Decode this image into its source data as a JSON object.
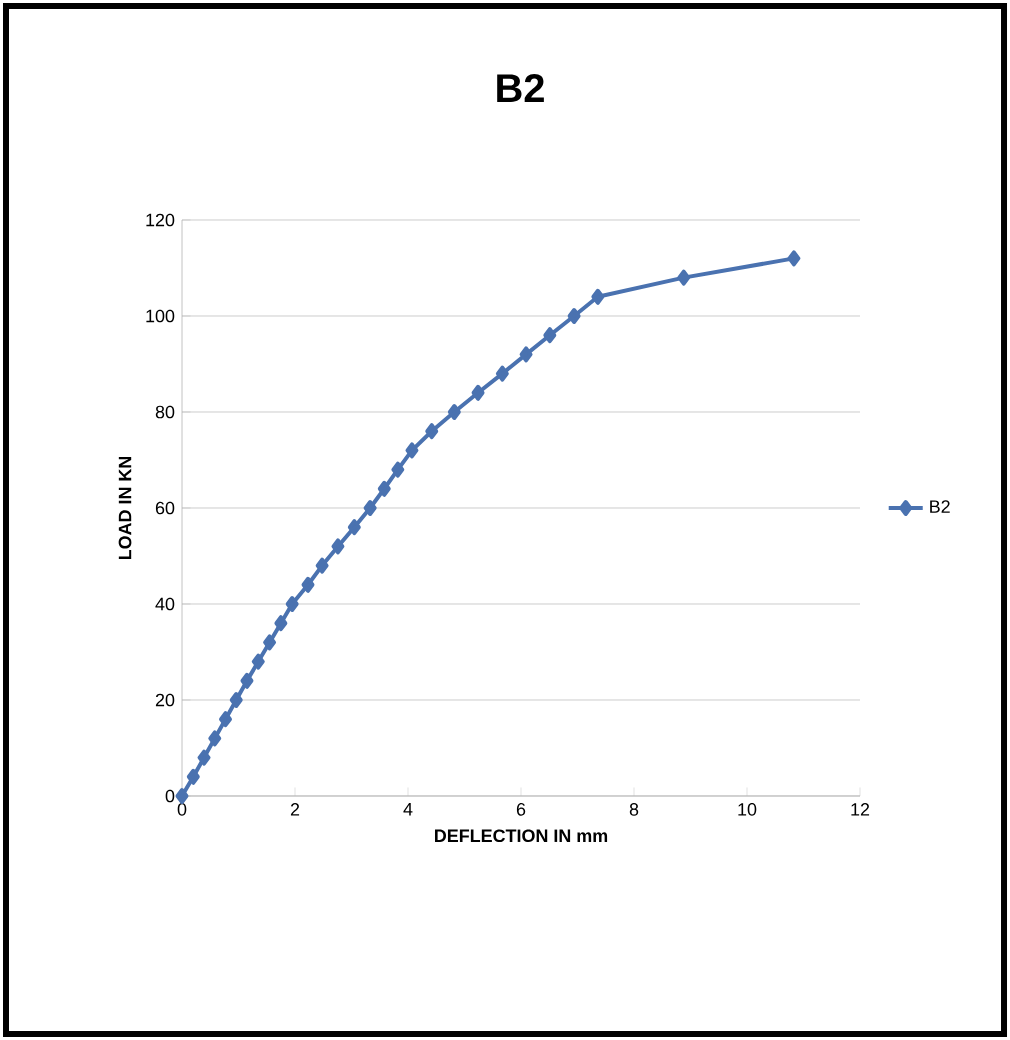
{
  "chart_data": {
    "type": "line",
    "title": "B2",
    "xlabel": "DEFLECTION IN mm",
    "ylabel": "LOAD IN KN",
    "xlim": [
      0,
      12
    ],
    "xticks": [
      0,
      2,
      4,
      6,
      8,
      10,
      12
    ],
    "ylim": [
      0,
      120
    ],
    "yticks": [
      0,
      20,
      40,
      60,
      80,
      100,
      120
    ],
    "grid": "y",
    "legend": "right",
    "marker": "diamond",
    "line_style": "solid",
    "series": [
      {
        "name": "B2",
        "color": "#4a72b0",
        "x": [
          0,
          0.2,
          0.39,
          0.58,
          0.77,
          0.96,
          1.15,
          1.35,
          1.55,
          1.75,
          1.95,
          2.23,
          2.48,
          2.76,
          3.05,
          3.33,
          3.58,
          3.82,
          4.07,
          4.42,
          4.82,
          5.24,
          5.67,
          6.09,
          6.51,
          6.94,
          7.36,
          8.88,
          10.83
        ],
        "values": [
          0,
          4,
          8,
          12,
          16,
          20,
          24,
          28,
          32,
          36,
          40,
          44,
          48,
          52,
          56,
          60,
          64,
          68,
          72,
          76,
          80,
          84,
          88,
          92,
          96,
          100,
          104,
          108,
          112
        ]
      }
    ]
  }
}
